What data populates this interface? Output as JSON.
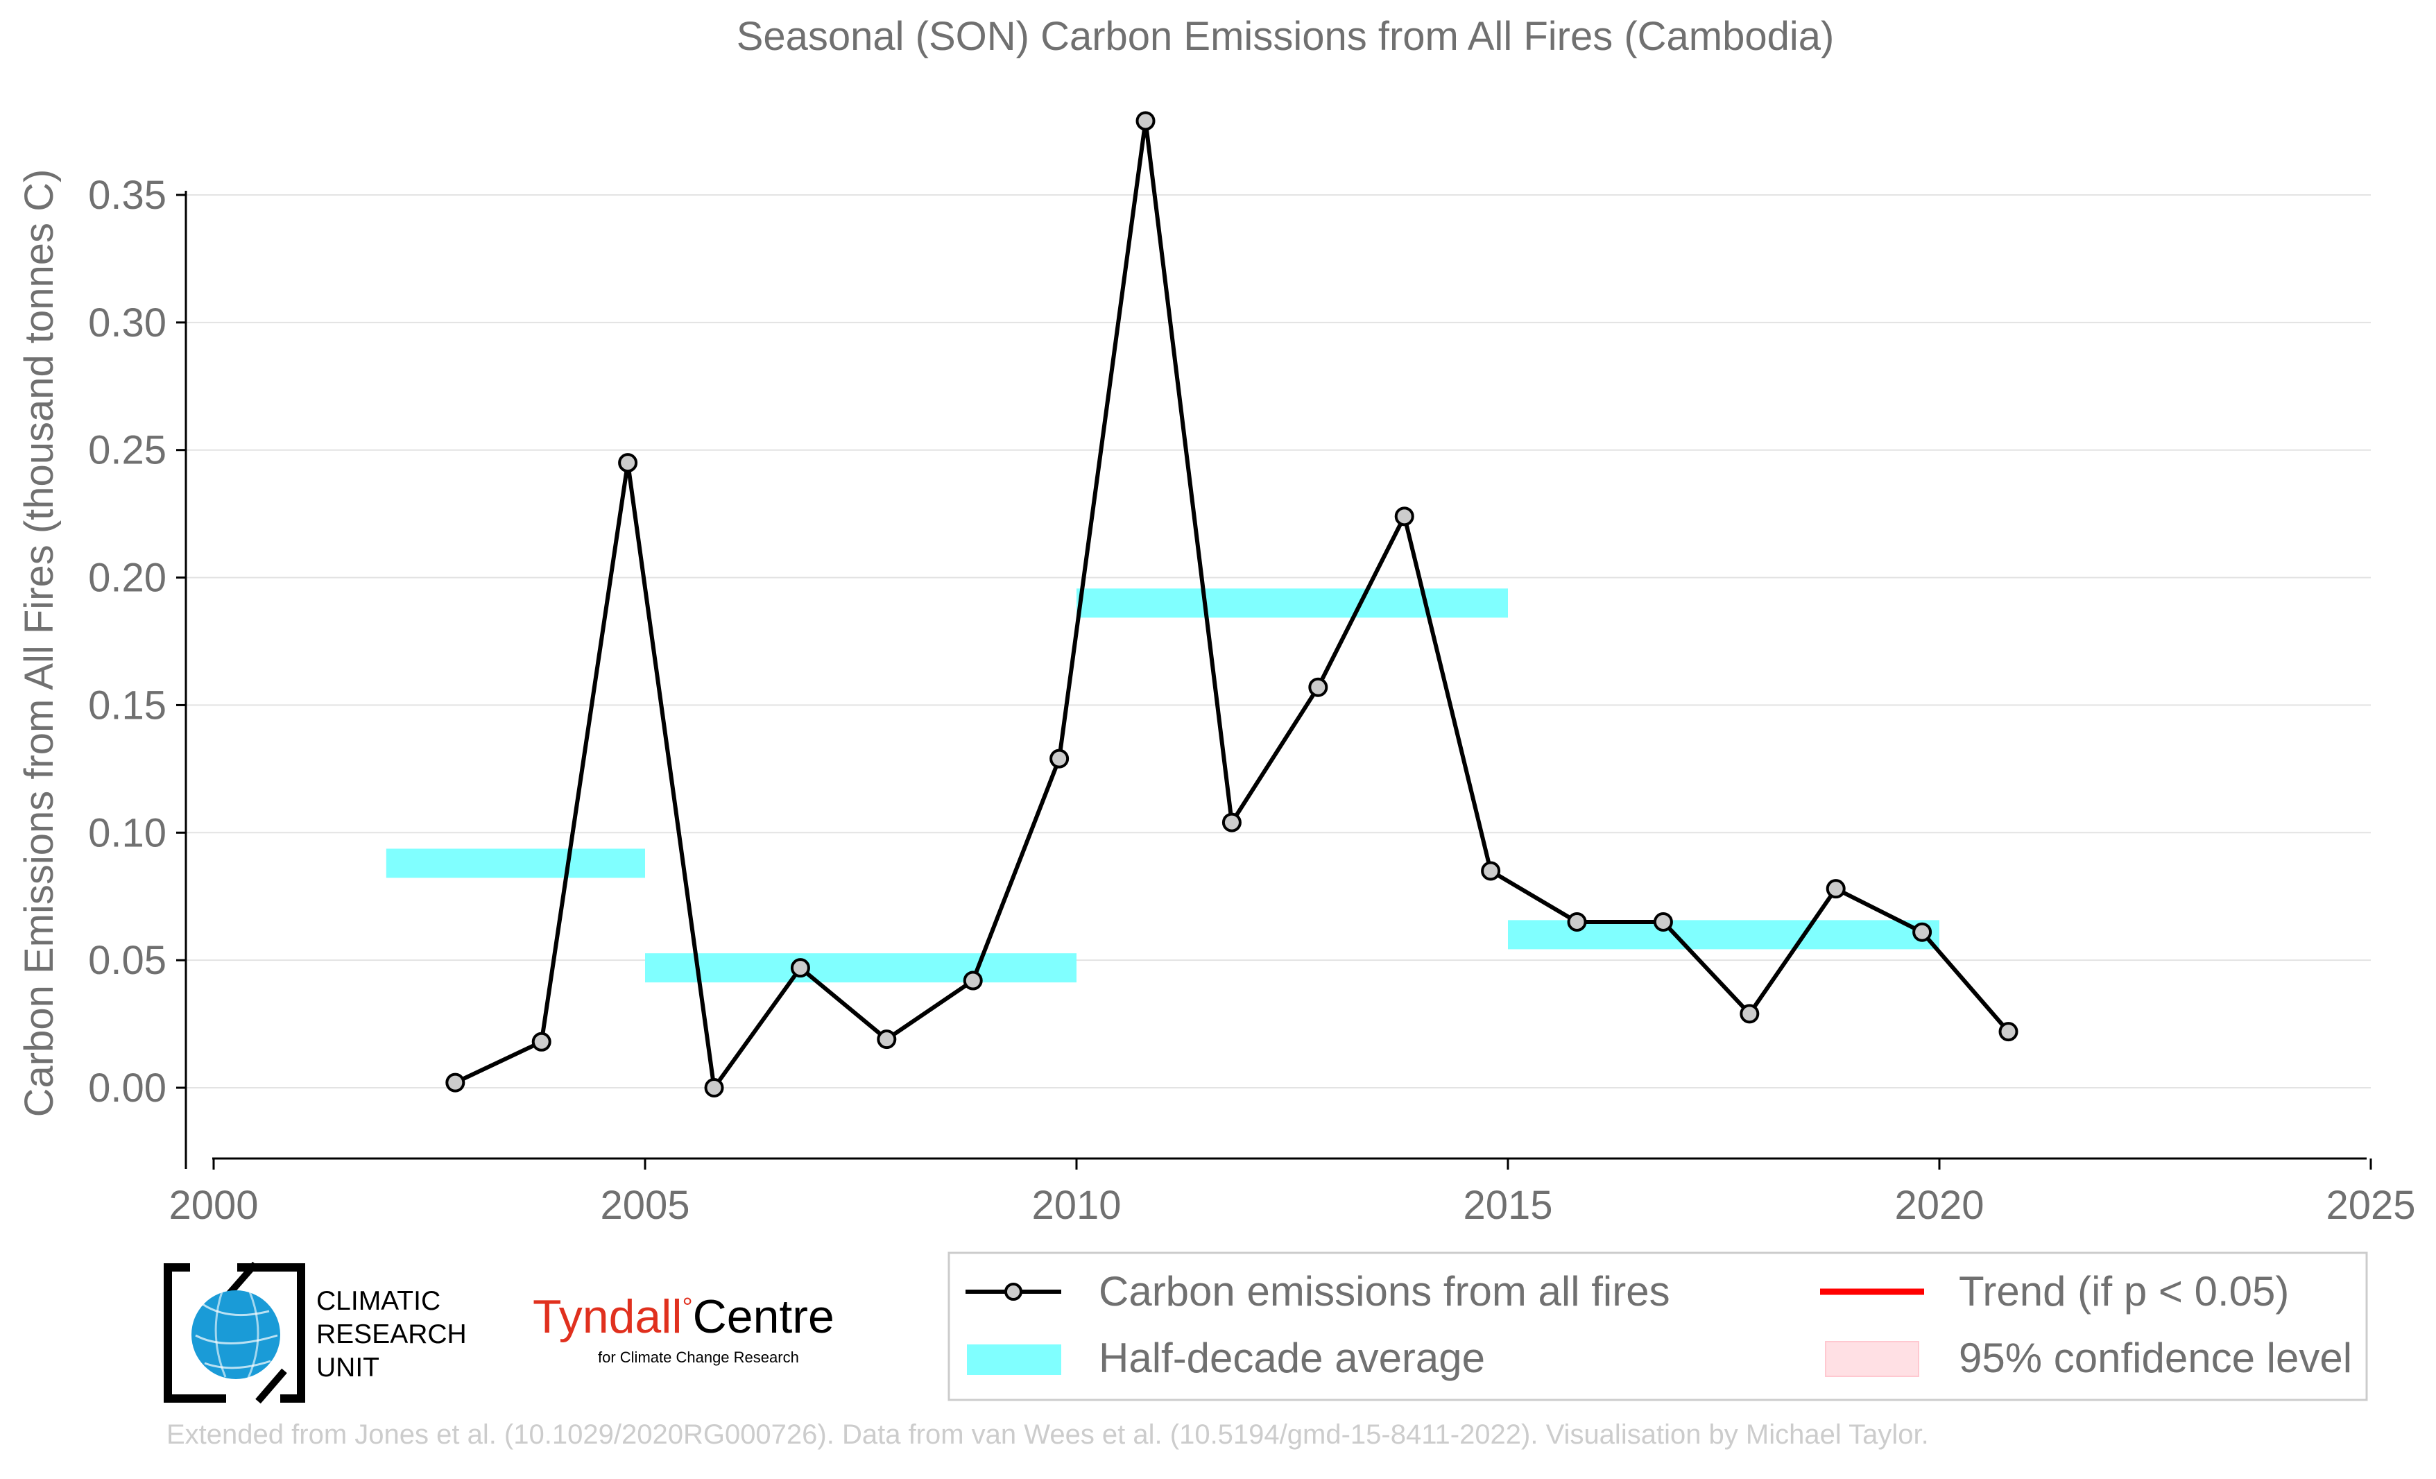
{
  "chart_data": {
    "type": "line",
    "title": "Seasonal (SON) Carbon Emissions from All Fires (Cambodia)",
    "ylabel": "Carbon Emissions from All Fires (thousand tonnes C)",
    "xlabel": "",
    "xlim": [
      2000,
      2025
    ],
    "ylim": [
      -0.03,
      0.38
    ],
    "x_ticks": [
      "2000",
      "2005",
      "2010",
      "2015",
      "2020",
      "2025"
    ],
    "x_tick_values": [
      2000,
      2005,
      2010,
      2015,
      2020,
      2025
    ],
    "y_ticks": [
      "0.00",
      "0.05",
      "0.10",
      "0.15",
      "0.20",
      "0.25",
      "0.30",
      "0.35"
    ],
    "y_tick_values": [
      0.0,
      0.05,
      0.1,
      0.15,
      0.2,
      0.25,
      0.3,
      0.35
    ],
    "grid": "horizontal",
    "series": [
      {
        "name": "Carbon emissions from all fires",
        "color": "#000000",
        "x": [
          2002.8,
          2003.8,
          2004.8,
          2005.8,
          2006.8,
          2007.8,
          2008.8,
          2009.8,
          2010.8,
          2011.8,
          2012.8,
          2013.8,
          2014.8,
          2015.8,
          2016.8,
          2017.8,
          2018.8,
          2019.8,
          2020.8
        ],
        "y": [
          0.002,
          0.018,
          0.245,
          0.0,
          0.047,
          0.019,
          0.042,
          0.129,
          0.379,
          0.104,
          0.157,
          0.224,
          0.085,
          0.065,
          0.065,
          0.029,
          0.078,
          0.061,
          0.022
        ]
      }
    ],
    "half_decade_averages": {
      "name": "Half-decade average",
      "color": "#80ffff",
      "segments": [
        {
          "x_start": 2002,
          "x_end": 2005,
          "y": 0.088
        },
        {
          "x_start": 2005,
          "x_end": 2010,
          "y": 0.047
        },
        {
          "x_start": 2010,
          "x_end": 2015,
          "y": 0.19
        },
        {
          "x_start": 2015,
          "x_end": 2020,
          "y": 0.06
        }
      ]
    },
    "legend": {
      "placement": "bottom-right",
      "entries": [
        {
          "label": "Carbon emissions from all fires",
          "kind": "line-marker",
          "color": "#000000"
        },
        {
          "label": "Trend (if p < 0.05)",
          "kind": "line",
          "color": "#ff0000"
        },
        {
          "label": "Half-decade average",
          "kind": "patch",
          "color": "#80ffff"
        },
        {
          "label": "95% confidence level",
          "kind": "patch",
          "color": "#ffe0e4"
        }
      ]
    }
  },
  "logos": {
    "cru_lines": [
      "CLIMATIC",
      "RESEARCH",
      "UNIT"
    ],
    "tyndall_name_1": "Tyndall",
    "tyndall_degree": "°",
    "tyndall_name_2": "Centre",
    "tyndall_sub": "for Climate Change Research"
  },
  "credit": "Extended from Jones et al. (10.1029/2020RG000726). Data from van Wees et al. (10.5194/gmd-15-8411-2022). Visualisation by Michael Taylor."
}
